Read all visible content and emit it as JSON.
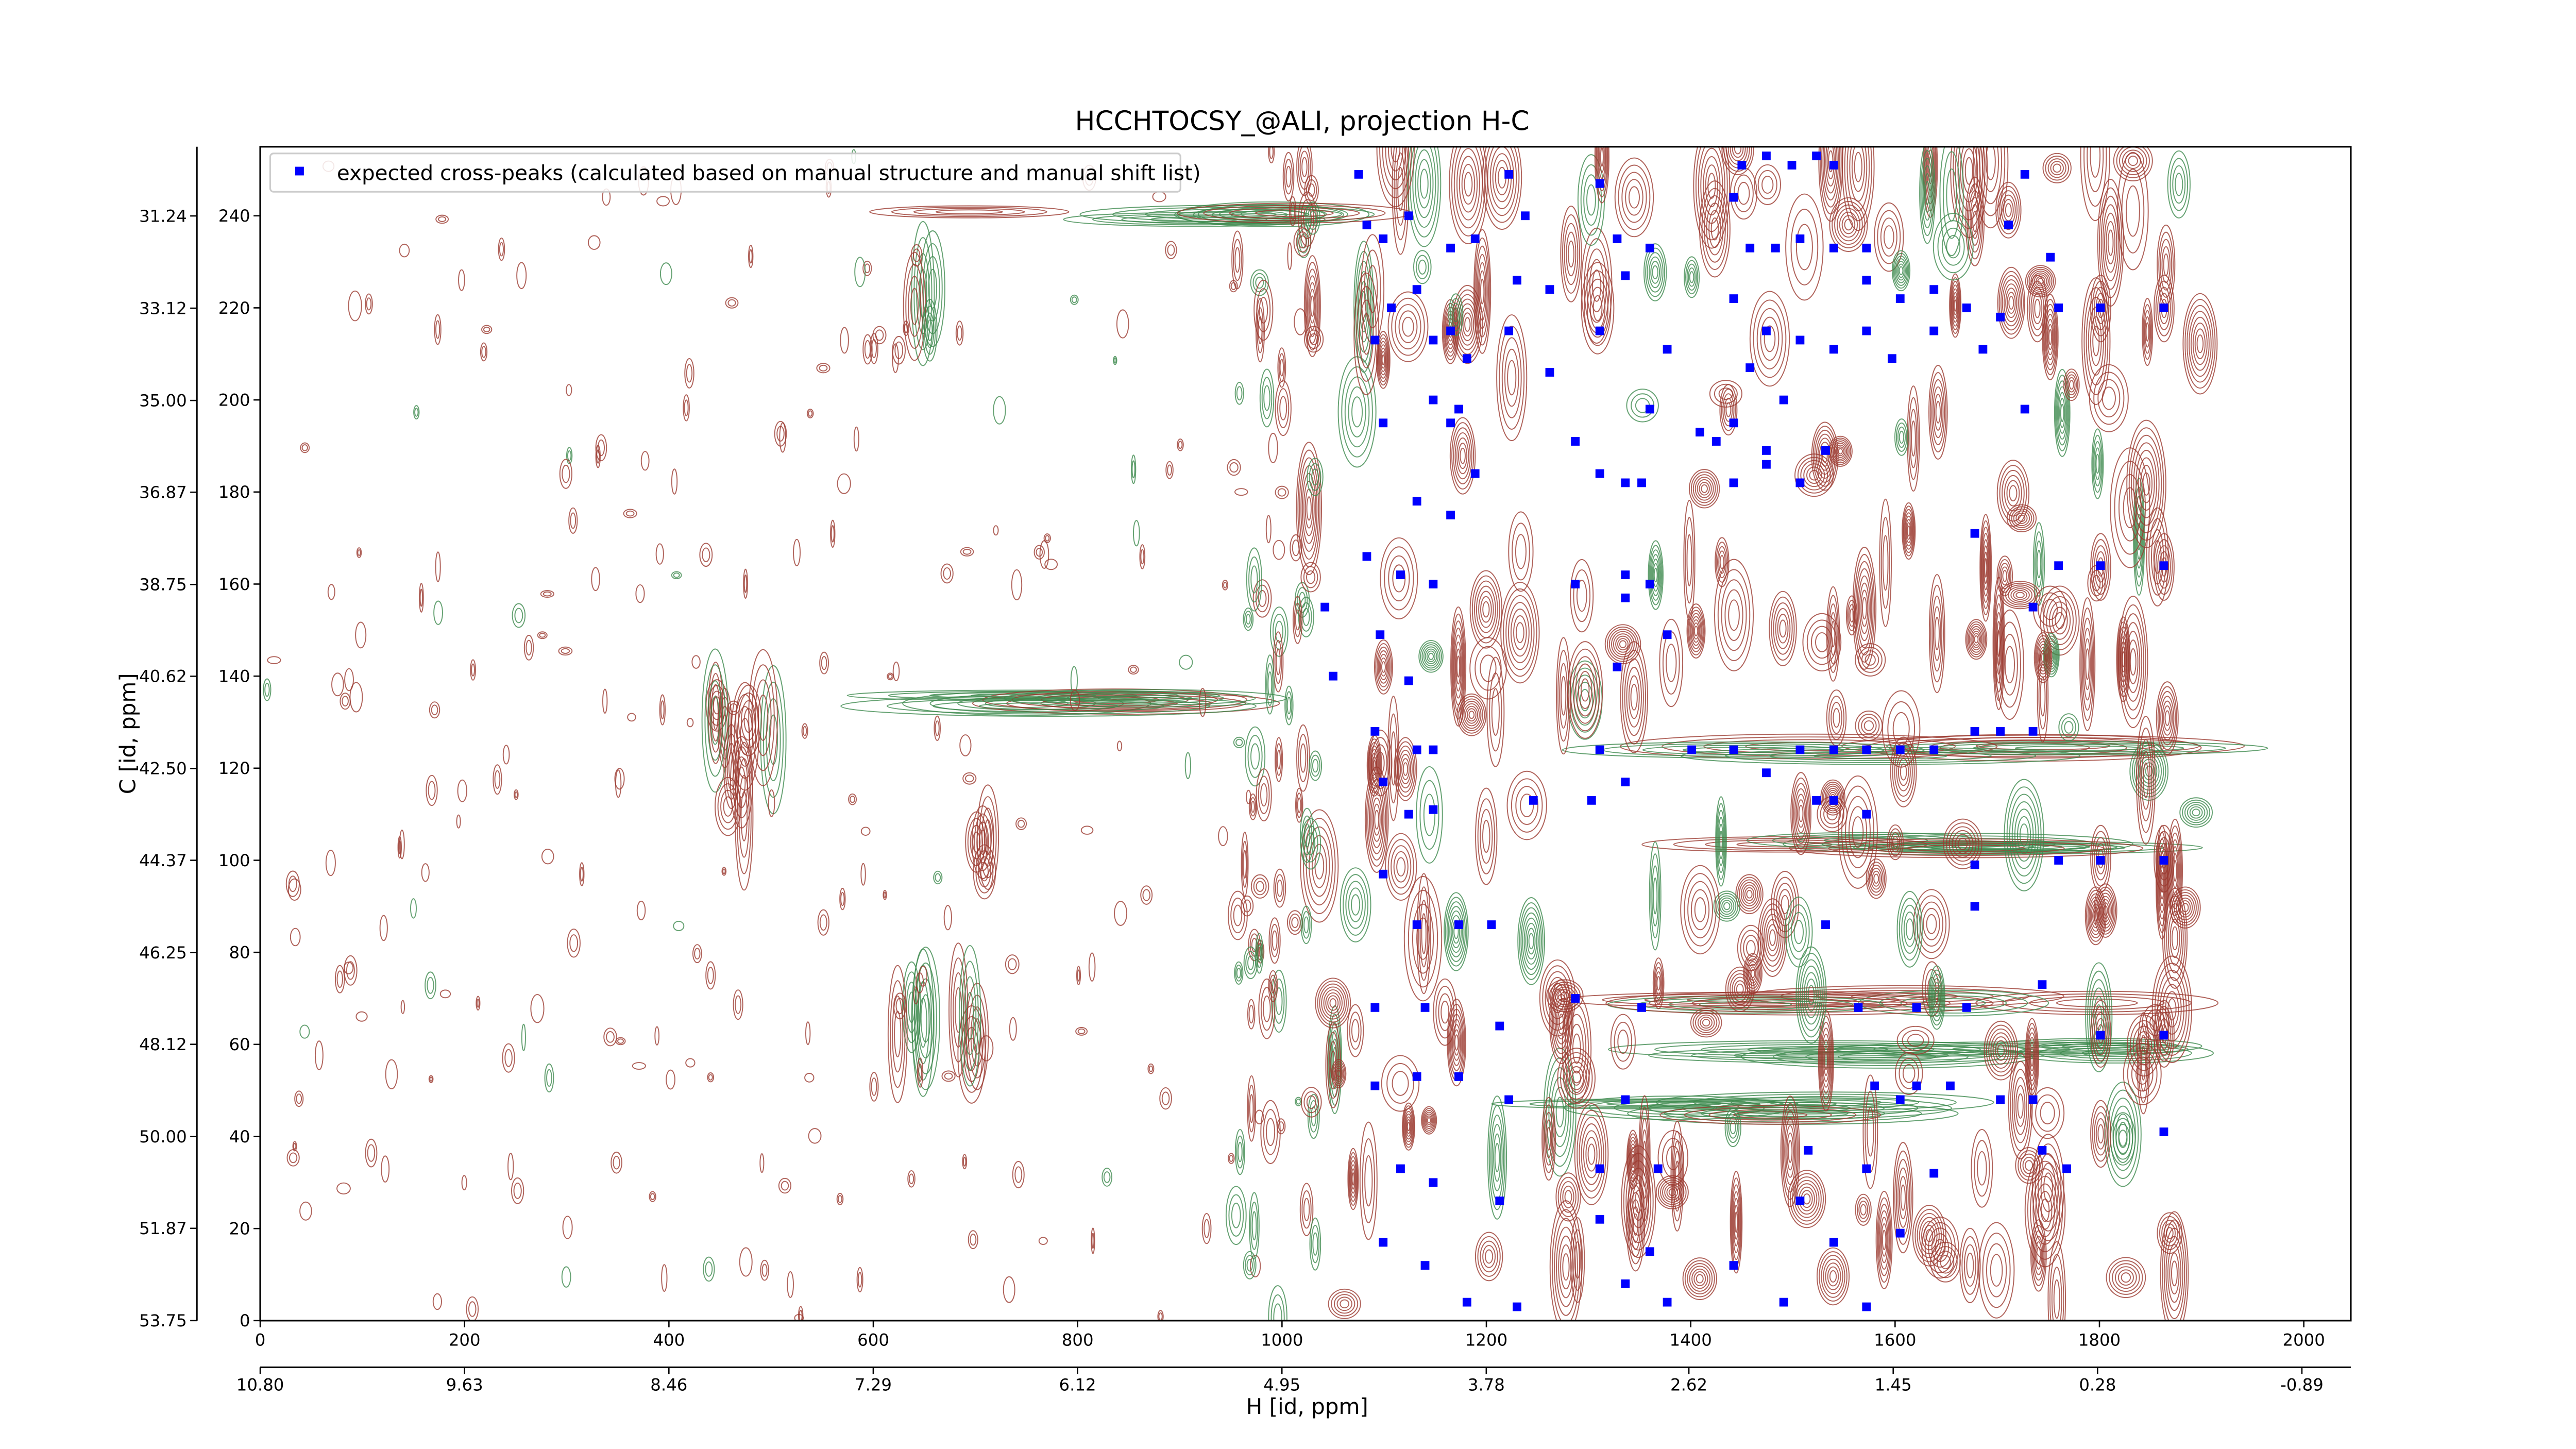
{
  "chart_data": {
    "type": "scatter",
    "title": "HCCHTOCSY_@ALI, projection H-C",
    "x_label": "H [id, ppm]",
    "y_label": "C [id, ppm]",
    "xlim": [
      0,
      2046
    ],
    "xticks": [
      0,
      200,
      400,
      600,
      800,
      1000,
      1200,
      1400,
      1600,
      1800,
      2000
    ],
    "x2lim": [
      10.8,
      -1.17
    ],
    "x2ticks": [
      {
        "value": 10.8,
        "label": "10.80"
      },
      {
        "value": 9.63,
        "label": "9.63"
      },
      {
        "value": 8.46,
        "label": "8.46"
      },
      {
        "value": 7.29,
        "label": "7.29"
      },
      {
        "value": 6.12,
        "label": "6.12"
      },
      {
        "value": 4.95,
        "label": "4.95"
      },
      {
        "value": 3.78,
        "label": "3.78"
      },
      {
        "value": 2.62,
        "label": "2.62"
      },
      {
        "value": 1.45,
        "label": "1.45"
      },
      {
        "value": 0.28,
        "label": "0.28"
      },
      {
        "value": -0.89,
        "label": "-0.89"
      }
    ],
    "ylim": [
      0,
      255
    ],
    "yticks": [
      0,
      20,
      40,
      60,
      80,
      100,
      120,
      140,
      160,
      180,
      200,
      220,
      240
    ],
    "y2lim": [
      53.75,
      29.83
    ],
    "y2ticks": [
      {
        "value": 53.75,
        "label": "53.75"
      },
      {
        "value": 51.87,
        "label": "51.87"
      },
      {
        "value": 50.0,
        "label": "50.00"
      },
      {
        "value": 48.12,
        "label": "48.12"
      },
      {
        "value": 46.25,
        "label": "46.25"
      },
      {
        "value": 44.37,
        "label": "44.37"
      },
      {
        "value": 42.5,
        "label": "42.50"
      },
      {
        "value": 40.62,
        "label": "40.62"
      },
      {
        "value": 38.75,
        "label": "38.75"
      },
      {
        "value": 36.87,
        "label": "36.87"
      },
      {
        "value": 35.0,
        "label": "35.00"
      },
      {
        "value": 33.12,
        "label": "33.12"
      },
      {
        "value": 31.24,
        "label": "31.24"
      }
    ],
    "legend_position": "upper left",
    "series": [
      {
        "name": "expected cross-peaks (calculated based on manual structure and manual shift list)",
        "color": "#0000ff",
        "x": [
          1075,
          1083,
          1099,
          1124,
          1132,
          1107,
          1091,
          1148,
          1165,
          1189,
          1165,
          1181,
          1148,
          1165,
          1189,
          1173,
          1099,
          1132,
          1165,
          1083,
          1116,
          1148,
          1042,
          1050,
          1096,
          1124,
          1091,
          1132,
          1148,
          1099,
          1124,
          1148,
          1099,
          1132,
          1173,
          1205,
          1091,
          1140,
          1213,
          1222,
          1091,
          1132,
          1173,
          1116,
          1148,
          1213,
          1099,
          1140,
          1181,
          1230,
          1222,
          1238,
          1230,
          1262,
          1222,
          1262,
          1311,
          1328,
          1336,
          1360,
          1311,
          1377,
          1360,
          1287,
          1311,
          1336,
          1352,
          1287,
          1336,
          1360,
          1336,
          1377,
          1328,
          1311,
          1303,
          1336,
          1246,
          1287,
          1352,
          1336,
          1311,
          1368,
          1311,
          1360,
          1336,
          1377,
          1450,
          1474,
          1499,
          1523,
          1540,
          1442,
          1458,
          1483,
          1507,
          1540,
          1572,
          1442,
          1474,
          1507,
          1540,
          1572,
          1458,
          1491,
          1442,
          1474,
          1507,
          1532,
          1572,
          1605,
          1638,
          1670,
          1703,
          1597,
          1638,
          1686,
          1409,
          1425,
          1442,
          1474,
          1401,
          1442,
          1507,
          1540,
          1572,
          1605,
          1638,
          1540,
          1572,
          1523,
          1474,
          1532,
          1564,
          1621,
          1670,
          1580,
          1621,
          1654,
          1605,
          1515,
          1572,
          1638,
          1507,
          1540,
          1605,
          1442,
          1491,
          1572,
          1678,
          1703,
          1735,
          1678,
          1678,
          1703,
          1735,
          1744,
          1768,
          1735,
          1744,
          1760,
          1801,
          1863,
          1760,
          1801,
          1863,
          1760,
          1801,
          1863,
          1801,
          1863,
          1863,
          1752,
          1711,
          1727,
          1727,
          1678
        ],
        "y": [
          249,
          238,
          235,
          240,
          224,
          220,
          213,
          213,
          233,
          235,
          215,
          209,
          200,
          195,
          184,
          198,
          195,
          178,
          175,
          166,
          162,
          160,
          155,
          140,
          149,
          139,
          128,
          124,
          124,
          117,
          110,
          111,
          97,
          86,
          86,
          86,
          68,
          68,
          64,
          48,
          51,
          53,
          53,
          33,
          30,
          26,
          17,
          12,
          4,
          3,
          249,
          240,
          226,
          224,
          215,
          206,
          247,
          235,
          227,
          233,
          215,
          211,
          198,
          191,
          184,
          182,
          182,
          160,
          162,
          160,
          157,
          149,
          142,
          124,
          113,
          117,
          113,
          70,
          68,
          48,
          33,
          33,
          22,
          15,
          8,
          4,
          251,
          253,
          251,
          253,
          251,
          244,
          233,
          233,
          235,
          233,
          233,
          222,
          215,
          213,
          211,
          215,
          207,
          200,
          195,
          189,
          182,
          189,
          226,
          222,
          224,
          220,
          218,
          209,
          215,
          211,
          193,
          191,
          182,
          186,
          124,
          124,
          124,
          124,
          124,
          124,
          124,
          113,
          110,
          113,
          119,
          86,
          68,
          68,
          68,
          51,
          51,
          51,
          48,
          37,
          33,
          32,
          26,
          17,
          19,
          12,
          4,
          3,
          128,
          128,
          128,
          99,
          90,
          48,
          48,
          37,
          33,
          155,
          73,
          164,
          164,
          164,
          100,
          100,
          100,
          220,
          220,
          220,
          62,
          62,
          41,
          231,
          238,
          249,
          198,
          171
        ]
      }
    ]
  }
}
